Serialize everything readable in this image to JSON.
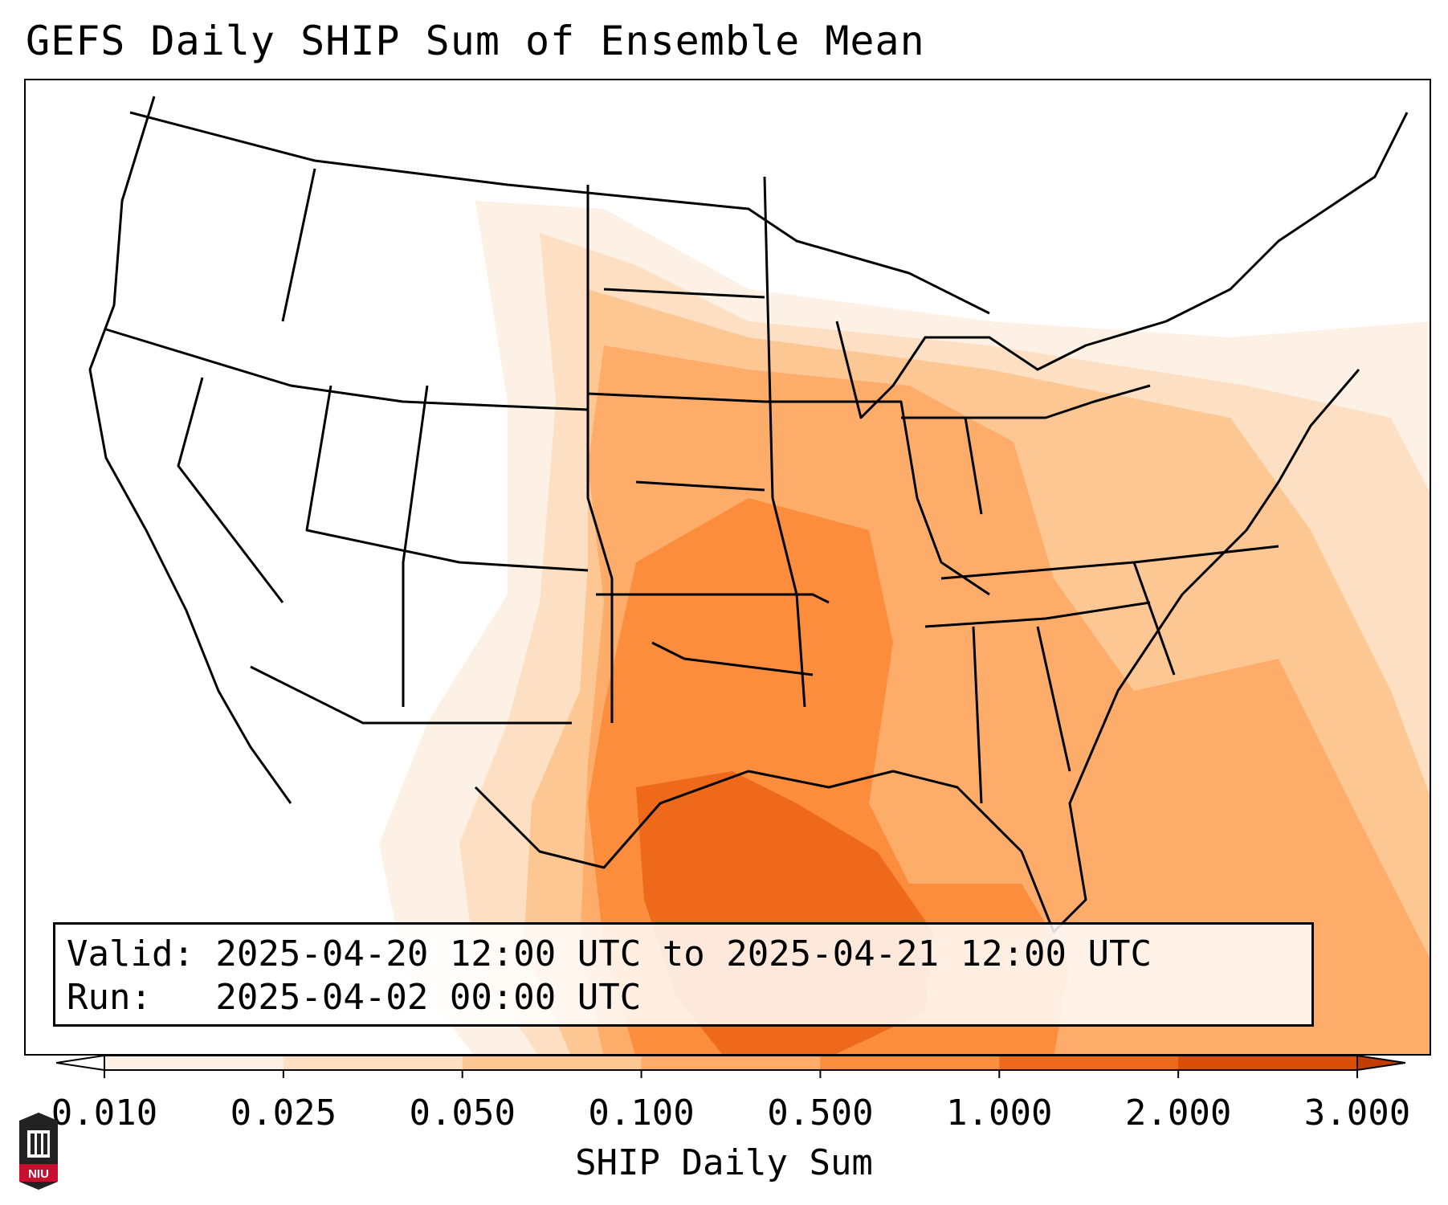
{
  "title": "GEFS Daily SHIP Sum of Ensemble Mean",
  "info": {
    "valid_line": "Valid: 2025-04-20 12:00 UTC to 2025-04-21 12:00 UTC",
    "run_line": "Run:   2025-04-02 00:00 UTC"
  },
  "colorbar": {
    "label": "SHIP Daily Sum",
    "ticks": [
      "0.010",
      "0.025",
      "0.050",
      "0.100",
      "0.500",
      "1.000",
      "2.000",
      "3.000"
    ],
    "colors": [
      "#fdf0e4",
      "#fde0c4",
      "#fdc794",
      "#fdac6a",
      "#fb8d3d",
      "#ee6a1a",
      "#db4e08",
      "#c13d03"
    ]
  },
  "logo": {
    "text": "NIU",
    "colors": {
      "shield": "#222222",
      "band": "#c8102e"
    }
  }
}
